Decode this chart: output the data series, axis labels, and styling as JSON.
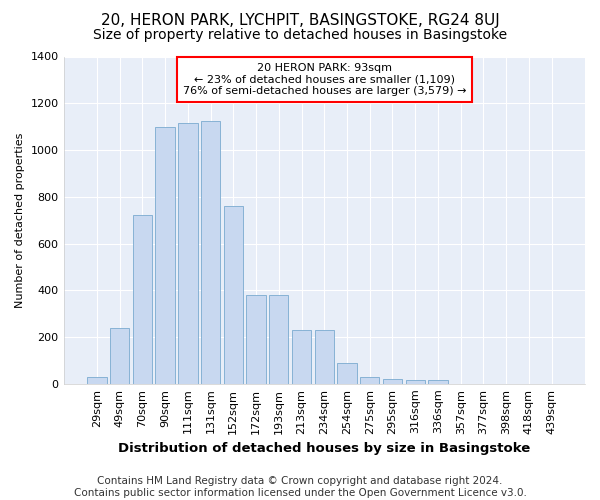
{
  "title": "20, HERON PARK, LYCHPIT, BASINGSTOKE, RG24 8UJ",
  "subtitle": "Size of property relative to detached houses in Basingstoke",
  "xlabel": "Distribution of detached houses by size in Basingstoke",
  "ylabel": "Number of detached properties",
  "categories": [
    "29sqm",
    "49sqm",
    "70sqm",
    "90sqm",
    "111sqm",
    "131sqm",
    "152sqm",
    "172sqm",
    "193sqm",
    "213sqm",
    "234sqm",
    "254sqm",
    "275sqm",
    "295sqm",
    "316sqm",
    "336sqm",
    "357sqm",
    "377sqm",
    "398sqm",
    "418sqm",
    "439sqm"
  ],
  "values": [
    30,
    240,
    720,
    1100,
    1115,
    1125,
    760,
    380,
    380,
    230,
    230,
    90,
    30,
    20,
    15,
    15,
    0,
    0,
    0,
    0,
    0
  ],
  "bar_color": "#c8d8f0",
  "bar_edge_color": "#7aaad0",
  "annotation_text": "20 HERON PARK: 93sqm\n← 23% of detached houses are smaller (1,109)\n76% of semi-detached houses are larger (3,579) →",
  "annotation_box_color": "red",
  "annotation_text_color": "black",
  "annotation_bg": "white",
  "ylim": [
    0,
    1400
  ],
  "yticks": [
    0,
    200,
    400,
    600,
    800,
    1000,
    1200,
    1400
  ],
  "footer": "Contains HM Land Registry data © Crown copyright and database right 2024.\nContains public sector information licensed under the Open Government Licence v3.0.",
  "bg_color": "#ffffff",
  "plot_bg": "#e8eef8",
  "grid_color": "#ffffff",
  "title_fontsize": 11,
  "subtitle_fontsize": 10,
  "xlabel_fontsize": 9.5,
  "ylabel_fontsize": 8,
  "footer_fontsize": 7.5,
  "tick_fontsize": 8
}
